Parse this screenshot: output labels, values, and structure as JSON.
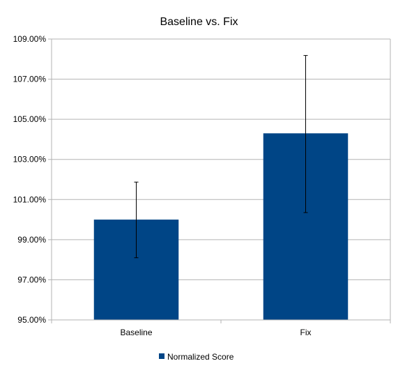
{
  "chart_data": {
    "type": "bar",
    "title": "Baseline vs. Fix",
    "xlabel": "",
    "ylabel": "",
    "categories": [
      "Baseline",
      "Fix"
    ],
    "series": [
      {
        "name": "Normalized Score",
        "values": [
          100.0,
          104.3
        ],
        "error_low": [
          98.1,
          100.35
        ],
        "error_high": [
          101.87,
          108.18
        ]
      }
    ],
    "ylim": [
      95,
      109
    ],
    "yticks": [
      95,
      97,
      99,
      101,
      103,
      105,
      107,
      109
    ],
    "ytick_labels": [
      "95.00%",
      "97.00%",
      "99.00%",
      "101.00%",
      "103.00%",
      "105.00%",
      "107.00%",
      "109.00%"
    ],
    "grid": true,
    "legend_position": "bottom",
    "colors": {
      "bar": "#004586",
      "grid": "#b3b3b3",
      "axis": "#b3b3b3"
    }
  }
}
